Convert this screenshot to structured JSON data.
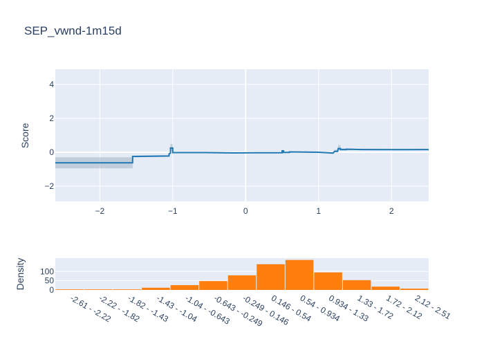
{
  "chart_data": [
    {
      "type": "line",
      "title": "SEP_vwnd-1m15d",
      "xlabel": "",
      "ylabel": "Score",
      "xlim": [
        -2.61,
        2.51
      ],
      "ylim": [
        -2.9,
        4.9
      ],
      "x_ticks": [
        -2,
        -1,
        0,
        1,
        2
      ],
      "x_tick_labels": [
        "−2",
        "−1",
        "0",
        "1",
        "2"
      ],
      "y_ticks": [
        -2,
        0,
        2,
        4
      ],
      "y_tick_labels": [
        "−2",
        "0",
        "2",
        "4"
      ],
      "grid": true,
      "colors": {
        "line": "#1f77b4",
        "band": "#8c9fb4",
        "plot_bg": "#e5ecf6"
      },
      "x": [
        -2.61,
        -1.55,
        -1.55,
        -1.05,
        -1.05,
        -1.03,
        -1.03,
        -1.0,
        -1.0,
        -0.55,
        -0.15,
        0.15,
        0.5,
        0.5,
        0.52,
        0.52,
        0.6,
        0.6,
        1.0,
        1.2,
        1.22,
        1.26,
        1.27,
        1.3,
        1.3,
        1.38,
        1.38,
        1.6,
        2.1,
        2.51
      ],
      "y": [
        -0.62,
        -0.62,
        -0.25,
        -0.22,
        -0.1,
        -0.05,
        0.25,
        0.25,
        -0.02,
        -0.02,
        -0.04,
        -0.03,
        -0.03,
        0.08,
        0.08,
        -0.01,
        -0.01,
        0.02,
        0.0,
        -0.05,
        0.05,
        0.05,
        0.22,
        0.22,
        0.16,
        0.16,
        0.18,
        0.16,
        0.15,
        0.16
      ],
      "band_lower": [
        -0.95,
        -0.95,
        -0.3,
        -0.27,
        -0.15,
        -0.12,
        0.1,
        0.1,
        -0.06,
        -0.06,
        -0.07,
        -0.06,
        -0.06,
        0.04,
        0.04,
        -0.04,
        -0.04,
        -0.01,
        -0.03,
        -0.1,
        0.0,
        0.0,
        0.1,
        0.1,
        0.1,
        0.1,
        0.12,
        0.12,
        0.12,
        0.13
      ],
      "band_upper": [
        -0.3,
        -0.3,
        -0.2,
        -0.17,
        -0.05,
        0.1,
        0.5,
        0.5,
        0.02,
        0.02,
        -0.01,
        0.0,
        0.0,
        0.14,
        0.14,
        0.02,
        0.02,
        0.05,
        0.03,
        0.0,
        0.15,
        0.15,
        0.42,
        0.42,
        0.22,
        0.22,
        0.22,
        0.2,
        0.19,
        0.19
      ]
    },
    {
      "type": "bar",
      "xlabel": "",
      "ylabel": "Density",
      "categories": [
        "-2.61 - -2.22",
        "-2.22 - -1.82",
        "-1.82 - -1.43",
        "-1.43 - -1.04",
        "-1.04 - -0.643",
        "-0.643 - -0.249",
        "-0.249 - 0.146",
        "0.146 - 0.54",
        "0.54 - 0.934",
        "0.934 - 1.33",
        "1.33 - 1.72",
        "1.72 - 2.12",
        "2.12 - 2.51"
      ],
      "values": [
        0,
        1,
        3,
        12,
        26,
        48,
        79,
        139,
        162,
        95,
        53,
        18,
        7
      ],
      "ylim": [
        0,
        172
      ],
      "y_ticks": [
        0,
        50,
        100
      ],
      "y_tick_labels": [
        "0",
        "50",
        "100"
      ],
      "colors": {
        "bar": "#ff7f0e",
        "plot_bg": "#e5ecf6"
      }
    }
  ]
}
